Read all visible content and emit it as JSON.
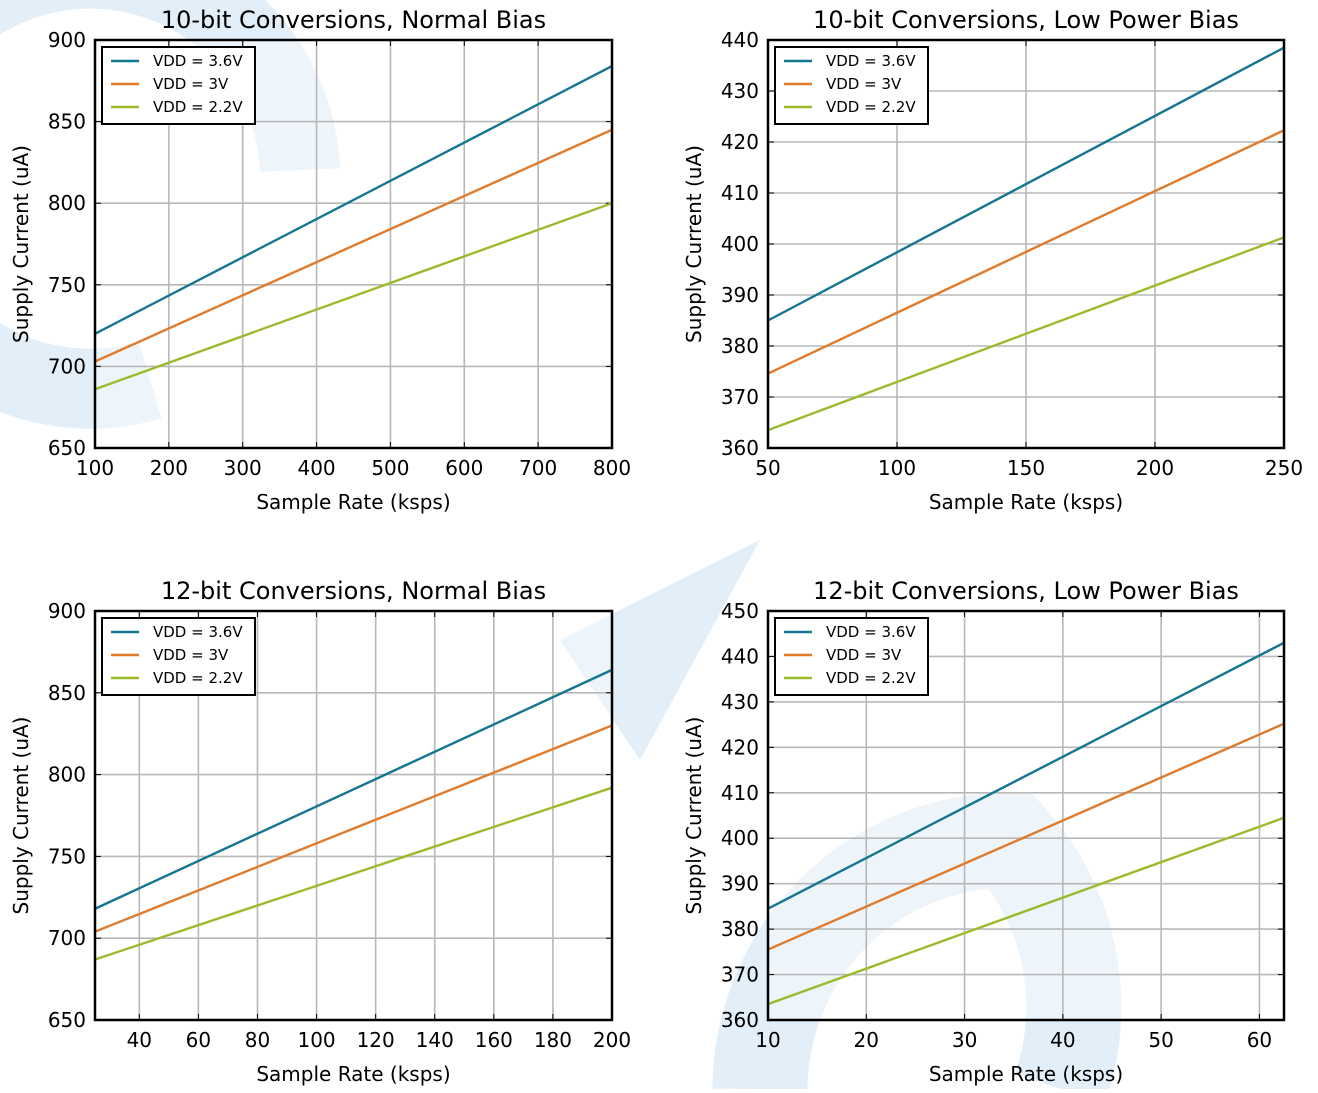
{
  "colors": {
    "vdd36": "#14768f",
    "vdd3": "#e07b2c",
    "vdd22": "#9bbb2e",
    "grid": "#b8b8b8",
    "watermark": "#e3eff8"
  },
  "chart_data": [
    {
      "type": "line",
      "title": "10-bit Conversions, Normal Bias",
      "xlabel": "Sample Rate (ksps)",
      "ylabel": "Supply Current (uA)",
      "xlim": [
        100,
        800
      ],
      "ylim": [
        650,
        900
      ],
      "xticks": [
        "100",
        "200",
        "300",
        "400",
        "500",
        "600",
        "700",
        "800"
      ],
      "yticks": [
        "650",
        "700",
        "750",
        "800",
        "850",
        "900"
      ],
      "grid": true,
      "legend_position": "top-left",
      "series": [
        {
          "name": "VDD = 3.6V",
          "x": [
            100,
            800
          ],
          "y": [
            720,
            884
          ]
        },
        {
          "name": "VDD = 3V",
          "x": [
            100,
            800
          ],
          "y": [
            703,
            845
          ]
        },
        {
          "name": "VDD = 2.2V",
          "x": [
            100,
            800
          ],
          "y": [
            686,
            800
          ]
        }
      ]
    },
    {
      "type": "line",
      "title": "10-bit Conversions, Low Power Bias",
      "xlabel": "Sample Rate (ksps)",
      "ylabel": "Supply Current (uA)",
      "xlim": [
        50,
        250
      ],
      "ylim": [
        360,
        440
      ],
      "xticks": [
        "50",
        "100",
        "150",
        "200",
        "250"
      ],
      "yticks": [
        "360",
        "370",
        "380",
        "390",
        "400",
        "410",
        "420",
        "430",
        "440"
      ],
      "grid": true,
      "legend_position": "top-left",
      "series": [
        {
          "name": "VDD = 3.6V",
          "x": [
            50,
            250
          ],
          "y": [
            385,
            438.5
          ]
        },
        {
          "name": "VDD = 3V",
          "x": [
            50,
            250
          ],
          "y": [
            374.6,
            422.3
          ]
        },
        {
          "name": "VDD = 2.2V",
          "x": [
            50,
            250
          ],
          "y": [
            363.5,
            401.3
          ]
        }
      ]
    },
    {
      "type": "line",
      "title": "12-bit Conversions, Normal Bias",
      "xlabel": "Sample Rate (ksps)",
      "ylabel": "Supply Current (uA)",
      "xlim": [
        25,
        200
      ],
      "ylim": [
        650,
        900
      ],
      "xticks": [
        "40",
        "60",
        "80",
        "100",
        "120",
        "140",
        "160",
        "180",
        "200"
      ],
      "yticks": [
        "650",
        "700",
        "750",
        "800",
        "850",
        "900"
      ],
      "grid": true,
      "legend_position": "top-left",
      "series": [
        {
          "name": "VDD = 3.6V",
          "x": [
            25,
            200
          ],
          "y": [
            718,
            864
          ]
        },
        {
          "name": "VDD = 3V",
          "x": [
            25,
            200
          ],
          "y": [
            704,
            830
          ]
        },
        {
          "name": "VDD = 2.2V",
          "x": [
            25,
            200
          ],
          "y": [
            687,
            792
          ]
        }
      ]
    },
    {
      "type": "line",
      "title": "12-bit Conversions, Low Power Bias",
      "xlabel": "Sample Rate (ksps)",
      "ylabel": "Supply Current (uA)",
      "xlim": [
        10,
        62.5
      ],
      "ylim": [
        360,
        450
      ],
      "xticks": [
        "10",
        "20",
        "30",
        "40",
        "50",
        "60"
      ],
      "yticks": [
        "360",
        "370",
        "380",
        "390",
        "400",
        "410",
        "420",
        "430",
        "440",
        "450"
      ],
      "grid": true,
      "legend_position": "top-left",
      "series": [
        {
          "name": "VDD = 3.6V",
          "x": [
            10,
            62.5
          ],
          "y": [
            384.5,
            443
          ]
        },
        {
          "name": "VDD = 3V",
          "x": [
            10,
            62.5
          ],
          "y": [
            375.5,
            425.2
          ]
        },
        {
          "name": "VDD = 2.2V",
          "x": [
            10,
            62.5
          ],
          "y": [
            363.5,
            404.5
          ]
        }
      ]
    }
  ]
}
